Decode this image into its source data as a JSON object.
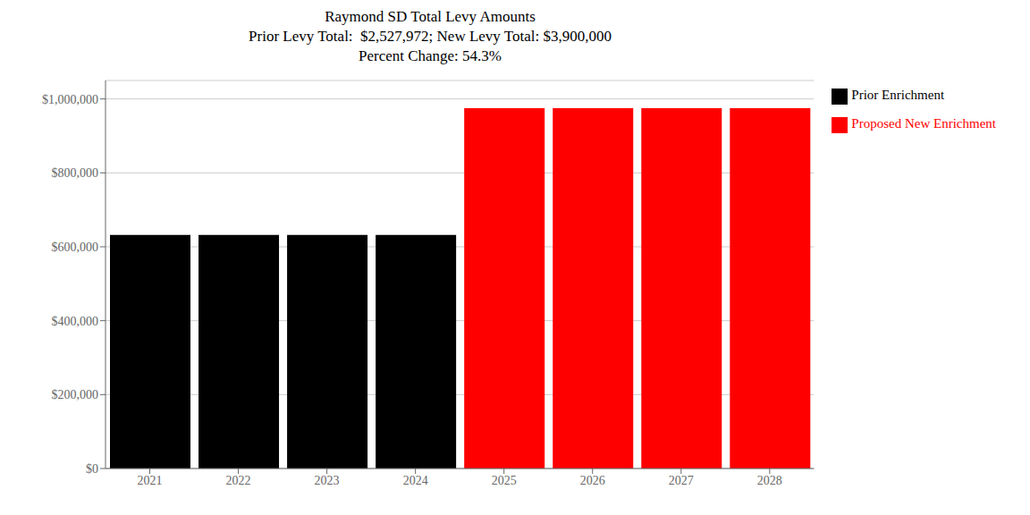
{
  "chart_data": {
    "type": "bar",
    "title": "Raymond SD Total Levy Amounts\nPrior Levy Total:  $2,527,972; New Levy Total: $3,900,000\nPercent Change: 54.3%",
    "categories": [
      "2021",
      "2022",
      "2023",
      "2024",
      "2025",
      "2026",
      "2027",
      "2028"
    ],
    "series": [
      {
        "name": "Prior Enrichment",
        "color": "#000000",
        "values": [
          631993,
          631993,
          631993,
          631993,
          null,
          null,
          null,
          null
        ]
      },
      {
        "name": "Proposed New Enrichment",
        "color": "#ff0000",
        "values": [
          null,
          null,
          null,
          null,
          975000,
          975000,
          975000,
          975000
        ]
      }
    ],
    "stacked": true,
    "ylim": [
      0,
      1050000
    ],
    "yticks": [
      {
        "value": 0,
        "label": "$0"
      },
      {
        "value": 200000,
        "label": "$200,000"
      },
      {
        "value": 400000,
        "label": "$400,000"
      },
      {
        "value": 600000,
        "label": "$600,000"
      },
      {
        "value": 800000,
        "label": "$800,000"
      },
      {
        "value": 1000000,
        "label": "$1,000,000"
      }
    ],
    "grid": true,
    "legend": "right"
  }
}
